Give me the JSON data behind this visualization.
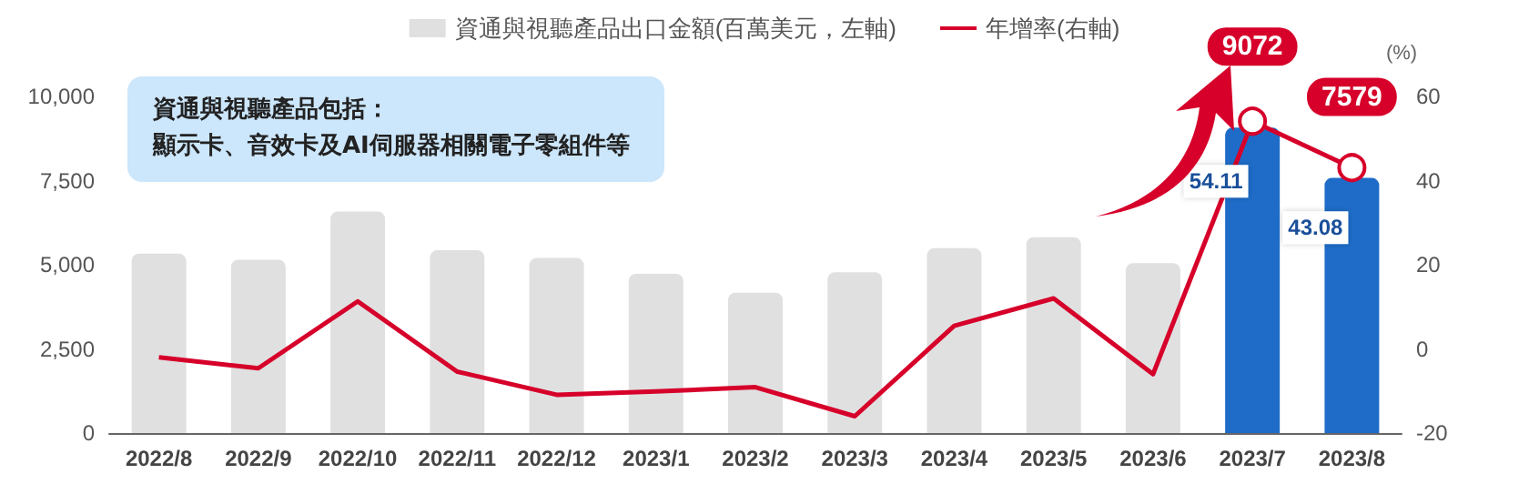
{
  "chart_data": {
    "type": "bar",
    "categories": [
      "2022/8",
      "2022/9",
      "2022/10",
      "2022/11",
      "2022/12",
      "2023/1",
      "2023/2",
      "2023/3",
      "2023/4",
      "2023/5",
      "2023/6",
      "2023/7",
      "2023/8"
    ],
    "series": [
      {
        "name": "資通與視聽產品出口金額(百萬美元，左軸)",
        "color": "#e0e0e0",
        "colors": [
          "#e0e0e0",
          "#e0e0e0",
          "#e0e0e0",
          "#e0e0e0",
          "#e0e0e0",
          "#e0e0e0",
          "#e0e0e0",
          "#e0e0e0",
          "#e0e0e0",
          "#e0e0e0",
          "#e0e0e0",
          "#1e6cc8",
          "#1e6cc8"
        ],
        "values": [
          5330,
          5150,
          6580,
          5430,
          5200,
          4730,
          4170,
          4780,
          5490,
          5820,
          5050,
          9072,
          7579
        ],
        "value_labels": [
          null,
          null,
          null,
          null,
          null,
          null,
          null,
          null,
          null,
          null,
          null,
          "9072",
          "7579"
        ]
      },
      {
        "name": "年增率(右軸)",
        "type": "line",
        "axis": "y2",
        "color": "#d6002a",
        "values": [
          -2.0,
          -4.6,
          11.3,
          -5.4,
          -10.9,
          -10.1,
          -9.1,
          -16.0,
          5.5,
          12.0,
          -6.0,
          54.11,
          43.08
        ],
        "value_labels": [
          null,
          null,
          null,
          null,
          null,
          null,
          null,
          null,
          null,
          null,
          null,
          "54.11",
          "43.08"
        ]
      }
    ],
    "ylim": [
      0,
      10000
    ],
    "yticks": [
      0,
      {
        "value": 2500,
        "label": "2,500"
      },
      {
        "value": 5000,
        "label": "5,000"
      },
      {
        "value": 7500,
        "label": "7,500"
      },
      {
        "value": 10000,
        "label": "10,000"
      }
    ],
    "y2lim": [
      -20,
      60
    ],
    "y2ticks": [
      -20,
      0,
      20,
      40,
      60
    ],
    "y2label": "(%)",
    "annotations": [
      "資通與視聽產品包括：",
      "顯示卡、音效卡及AI伺服器相關電子零組件等"
    ],
    "legend": "top",
    "grid": false,
    "marker": "none",
    "line_style": "solid"
  }
}
